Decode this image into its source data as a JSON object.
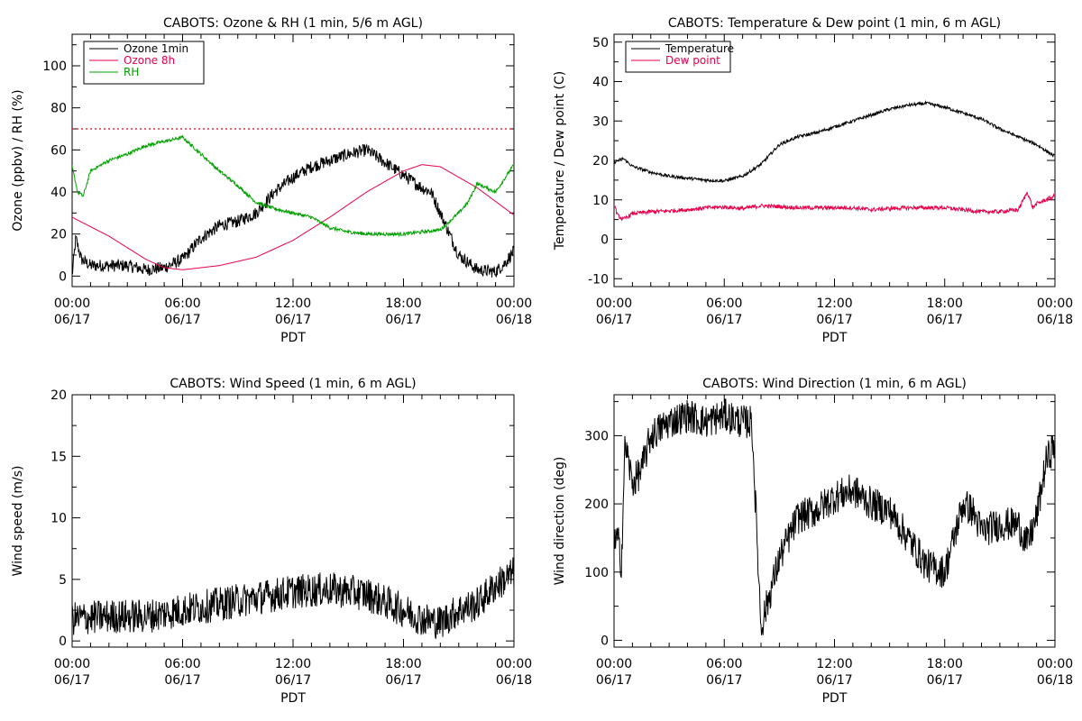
{
  "chart_data": [
    {
      "type": "line",
      "title": "CABOTS: Ozone & RH (1 min, 5/6 m AGL)",
      "xlabel": "PDT",
      "ylabel": "Ozone (ppbv) / RH (%)",
      "xlim": [
        "06/17 00:00",
        "06/18 00:00"
      ],
      "ylim": [
        -5,
        115
      ],
      "x_ticks": [
        {
          "time": "00:00",
          "date": "06/17"
        },
        {
          "time": "06:00",
          "date": "06/17"
        },
        {
          "time": "12:00",
          "date": "06/17"
        },
        {
          "time": "18:00",
          "date": "06/17"
        },
        {
          "time": "00:00",
          "date": "06/18"
        }
      ],
      "y_ticks": [
        "0",
        "20",
        "40",
        "60",
        "80",
        "100"
      ],
      "y_tick_values": [
        0,
        20,
        40,
        60,
        80,
        100
      ],
      "reference_line": {
        "value": 70,
        "color": "#e8001c",
        "style": "dotted"
      },
      "legend": {
        "placement": "top-left",
        "entries": [
          "Ozone 1min",
          "Ozone 8h",
          "RH"
        ]
      },
      "grid": false,
      "series": [
        {
          "name": "Ozone 1min",
          "color": "#000000",
          "hours": [
            0,
            0.2,
            0.5,
            1,
            2,
            3,
            4,
            5,
            6,
            7,
            8,
            9,
            10,
            11,
            12,
            13,
            14,
            15,
            16,
            17,
            18,
            19,
            19.5,
            20,
            21,
            22,
            23,
            23.5,
            24
          ],
          "values": [
            0,
            18,
            8,
            5,
            5,
            5,
            3,
            4,
            8,
            18,
            24,
            26,
            30,
            40,
            47,
            52,
            55,
            58,
            60,
            54,
            48,
            42,
            40,
            30,
            10,
            3,
            2,
            6,
            12
          ],
          "noise": 3
        },
        {
          "name": "Ozone 8h",
          "color": "#e8004a",
          "hours": [
            0,
            2,
            4,
            5,
            6,
            8,
            10,
            12,
            14,
            16,
            18,
            19,
            20,
            22,
            24
          ],
          "values": [
            28,
            19,
            8,
            4,
            3,
            5,
            9,
            17,
            28,
            40,
            50,
            53,
            52,
            42,
            29
          ],
          "noise": 0
        },
        {
          "name": "RH",
          "color": "#00a000",
          "hours": [
            0,
            0.3,
            0.6,
            1,
            2,
            3,
            4,
            5,
            6,
            7,
            8,
            9,
            10,
            11,
            12,
            13,
            14,
            15,
            16,
            17,
            18,
            19,
            20,
            21,
            21.5,
            22,
            23,
            24
          ],
          "values": [
            52,
            40,
            38,
            50,
            55,
            58,
            62,
            64,
            66,
            58,
            50,
            43,
            35,
            32,
            30,
            28,
            23,
            21,
            20,
            20,
            20,
            21,
            22,
            30,
            35,
            44,
            40,
            53
          ],
          "noise": 0.8
        }
      ]
    },
    {
      "type": "line",
      "title": "CABOTS: Temperature & Dew point (1 min, 6 m AGL)",
      "xlabel": "PDT",
      "ylabel": "Temperature / Dew point (C)",
      "xlim": [
        "06/17 00:00",
        "06/18 00:00"
      ],
      "ylim": [
        -12,
        52
      ],
      "x_ticks": [
        {
          "time": "00:00",
          "date": "06/17"
        },
        {
          "time": "06:00",
          "date": "06/17"
        },
        {
          "time": "12:00",
          "date": "06/17"
        },
        {
          "time": "18:00",
          "date": "06/17"
        },
        {
          "time": "00:00",
          "date": "06/18"
        }
      ],
      "y_ticks": [
        "-10",
        "0",
        "10",
        "20",
        "30",
        "40",
        "50"
      ],
      "y_tick_values": [
        -10,
        0,
        10,
        20,
        30,
        40,
        50
      ],
      "legend": {
        "placement": "top-left",
        "entries": [
          "Temperature",
          "Dew point"
        ]
      },
      "grid": false,
      "series": [
        {
          "name": "Temperature",
          "color": "#000000",
          "hours": [
            0,
            0.5,
            1,
            2,
            3,
            4,
            5,
            6,
            7,
            8,
            9,
            10,
            11,
            12,
            13,
            14,
            15,
            16,
            17,
            18,
            19,
            20,
            21,
            22,
            23,
            24
          ],
          "values": [
            19.5,
            20.5,
            18.5,
            17,
            16,
            15.5,
            15,
            14.8,
            16,
            19,
            24,
            26,
            27,
            28.5,
            30,
            31.5,
            33,
            34,
            34.5,
            33.5,
            32,
            30.5,
            28,
            26,
            24,
            21
          ],
          "noise": 0.4
        },
        {
          "name": "Dew point",
          "color": "#e8004a",
          "hours": [
            0,
            0.2,
            0.5,
            1,
            2,
            3,
            4,
            5,
            6,
            7,
            8,
            9,
            10,
            11,
            12,
            13,
            14,
            15,
            16,
            17,
            18,
            19,
            20,
            21,
            22,
            22.5,
            22.8,
            23,
            24
          ],
          "values": [
            9,
            6,
            5,
            6.5,
            7,
            7.2,
            7.5,
            8,
            8.2,
            7.8,
            8.5,
            8.3,
            8,
            8,
            8,
            8,
            7.5,
            7.8,
            8,
            8,
            8,
            7.5,
            7,
            7,
            7.5,
            12,
            8,
            9,
            11
          ],
          "noise": 0.5
        }
      ]
    },
    {
      "type": "line",
      "title": "CABOTS: Wind Speed (1 min, 6 m AGL)",
      "xlabel": "PDT",
      "ylabel": "Wind speed (m/s)",
      "xlim": [
        "06/17 00:00",
        "06/18 00:00"
      ],
      "ylim": [
        -0.5,
        20
      ],
      "x_ticks": [
        {
          "time": "00:00",
          "date": "06/17"
        },
        {
          "time": "06:00",
          "date": "06/17"
        },
        {
          "time": "12:00",
          "date": "06/17"
        },
        {
          "time": "18:00",
          "date": "06/17"
        },
        {
          "time": "00:00",
          "date": "06/18"
        }
      ],
      "y_ticks": [
        "0",
        "5",
        "10",
        "15",
        "20"
      ],
      "y_tick_values": [
        0,
        5,
        10,
        15,
        20
      ],
      "grid": false,
      "series": [
        {
          "color": "#000000",
          "hours": [
            0,
            2,
            4,
            6,
            8,
            10,
            12,
            14,
            16,
            18,
            19,
            20,
            21,
            22,
            23,
            24
          ],
          "values": [
            1.8,
            2,
            2,
            2.5,
            3,
            3.5,
            4,
            4.2,
            3.8,
            2.5,
            1.8,
            1.5,
            2.5,
            3,
            4.5,
            5.5
          ],
          "noise": 1.4
        }
      ]
    },
    {
      "type": "line",
      "title": "CABOTS: Wind Direction (1 min, 6 m AGL)",
      "xlabel": "PDT",
      "ylabel": "Wind direction (deg)",
      "xlim": [
        "06/17 00:00",
        "06/18 00:00"
      ],
      "ylim": [
        -10,
        360
      ],
      "x_ticks": [
        {
          "time": "00:00",
          "date": "06/17"
        },
        {
          "time": "06:00",
          "date": "06/17"
        },
        {
          "time": "12:00",
          "date": "06/17"
        },
        {
          "time": "18:00",
          "date": "06/17"
        },
        {
          "time": "00:00",
          "date": "06/18"
        }
      ],
      "y_ticks": [
        "0",
        "100",
        "200",
        "300"
      ],
      "y_tick_values": [
        0,
        100,
        200,
        300
      ],
      "grid": false,
      "series": [
        {
          "color": "#000000",
          "hours": [
            0,
            0.2,
            0.4,
            0.6,
            1,
            1.5,
            2,
            3,
            4,
            5,
            6,
            7,
            7.5,
            8,
            9,
            10,
            11,
            12,
            13,
            14,
            15,
            16,
            17,
            18,
            19,
            19.5,
            20,
            21,
            22,
            22.5,
            23,
            23.5,
            24
          ],
          "values": [
            140,
            150,
            110,
            290,
            230,
            250,
            300,
            320,
            330,
            320,
            330,
            320,
            320,
            20,
            120,
            180,
            190,
            210,
            220,
            200,
            190,
            150,
            110,
            100,
            200,
            190,
            160,
            170,
            170,
            140,
            180,
            260,
            290
          ],
          "noise": 25
        }
      ]
    }
  ]
}
